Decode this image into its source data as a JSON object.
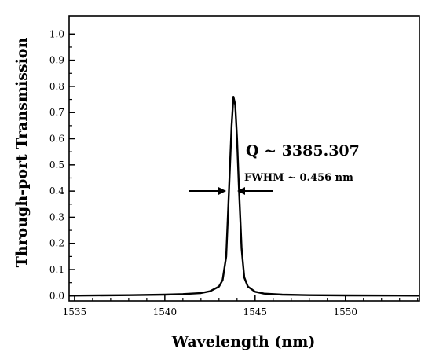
{
  "chart_data": {
    "type": "line",
    "title": "",
    "xlabel": "Wavelength (nm)",
    "ylabel": "Through-port Transmission",
    "xlim": [
      1534.7,
      1554.1
    ],
    "ylim": [
      -0.02,
      1.07
    ],
    "xticks": [
      1535,
      1540,
      1545,
      1550
    ],
    "yticks": [
      0.0,
      0.1,
      0.2,
      0.3,
      0.4,
      0.5,
      0.6,
      0.7,
      0.8,
      0.9,
      1.0
    ],
    "ytick_labels": [
      "0.0",
      "0.1",
      "0.2",
      "0.3",
      "0.4",
      "0.5",
      "0.6",
      "0.7",
      "0.8",
      "0.9",
      "1.0"
    ],
    "grid": false,
    "series": [
      {
        "x": [
          1534.7,
          1538,
          1540,
          1541,
          1542,
          1542.5,
          1543.0,
          1543.2,
          1543.4,
          1543.55,
          1543.7,
          1543.8,
          1543.9,
          1544.0,
          1544.1,
          1544.25,
          1544.4,
          1544.6,
          1545.0,
          1545.5,
          1546.5,
          1548,
          1550,
          1554.1
        ],
        "y": [
          0.0,
          0.002,
          0.004,
          0.006,
          0.01,
          0.017,
          0.035,
          0.06,
          0.15,
          0.4,
          0.65,
          0.76,
          0.73,
          0.6,
          0.42,
          0.18,
          0.07,
          0.035,
          0.015,
          0.008,
          0.004,
          0.002,
          0.001,
          0.0
        ]
      }
    ],
    "annotations": {
      "q": "Q ~ 3385.307",
      "fwhm": "FWHM ~ 0.456 nm"
    }
  }
}
